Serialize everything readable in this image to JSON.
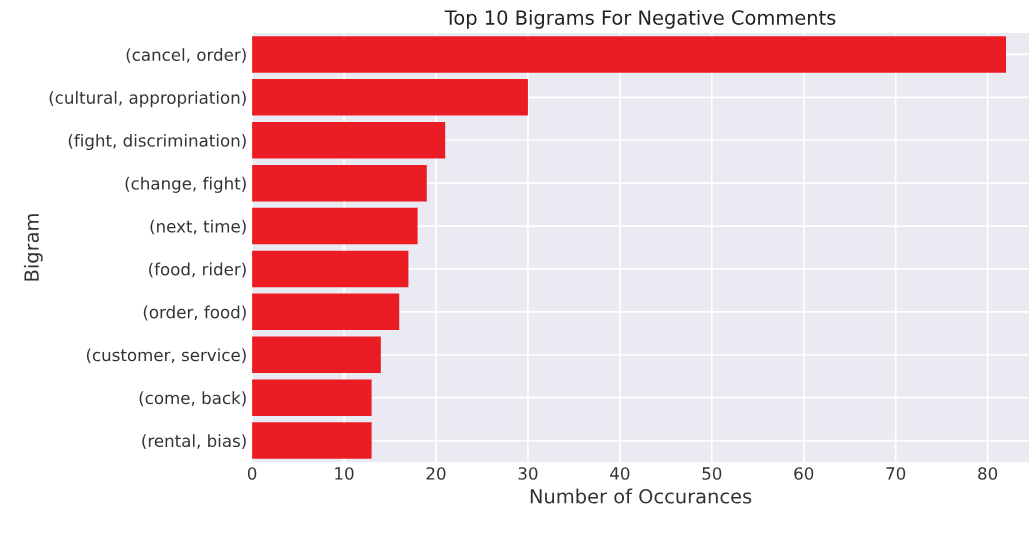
{
  "chart_data": {
    "type": "bar",
    "orientation": "horizontal",
    "title": "Top 10 Bigrams For Negative Comments",
    "xlabel": "Number of Occurances",
    "ylabel": "Bigram",
    "categories": [
      "(cancel, order)",
      "(cultural, appropriation)",
      "(fight, discrimination)",
      "(change, fight)",
      "(next, time)",
      "(food, rider)",
      "(order, food)",
      "(customer, service)",
      "(come, back)",
      "(rental, bias)"
    ],
    "values": [
      82,
      30,
      21,
      19,
      18,
      17,
      16,
      14,
      13,
      13
    ],
    "color": "#ec1c24",
    "xlim": [
      0,
      84.5
    ],
    "xticks": [
      0,
      10,
      20,
      30,
      40,
      50,
      60,
      70,
      80
    ],
    "grid": true
  }
}
